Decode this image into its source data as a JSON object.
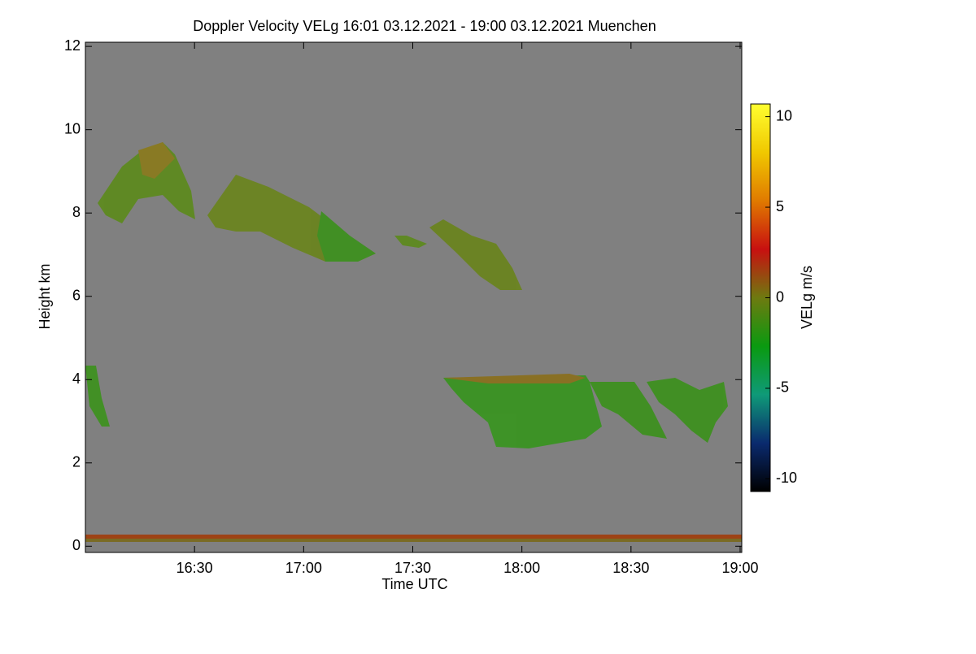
{
  "chart_data": {
    "type": "heatmap",
    "title": "Doppler Velocity VELg   16:01 03.12.2021 - 19:00 03.12.2021 Muenchen",
    "xlabel": "Time UTC",
    "ylabel": "Height km",
    "xlim": [
      16.0,
      19.0
    ],
    "xticks": [
      {
        "value": 16.5,
        "label": "16:30"
      },
      {
        "value": 17.0,
        "label": "17:00"
      },
      {
        "value": 17.5,
        "label": "17:30"
      },
      {
        "value": 18.0,
        "label": "18:00"
      },
      {
        "value": 18.5,
        "label": "18:30"
      },
      {
        "value": 19.0,
        "label": "19:00"
      }
    ],
    "ylim": [
      -0.15,
      12.1
    ],
    "yticks": [
      0,
      2,
      4,
      6,
      8,
      10,
      12
    ],
    "background": "#808080",
    "colorbar": {
      "label": "VELg m/s",
      "lim": [
        -10.7,
        10.7
      ],
      "ticks": [
        -10,
        -5,
        0,
        5,
        10
      ],
      "colormap": [
        "#000000",
        "#0a2a6e",
        "#0f9a78",
        "#0a9a10",
        "#6e7a10",
        "#c81010",
        "#e07a00",
        "#f0c800",
        "#ffff30"
      ]
    }
  }
}
